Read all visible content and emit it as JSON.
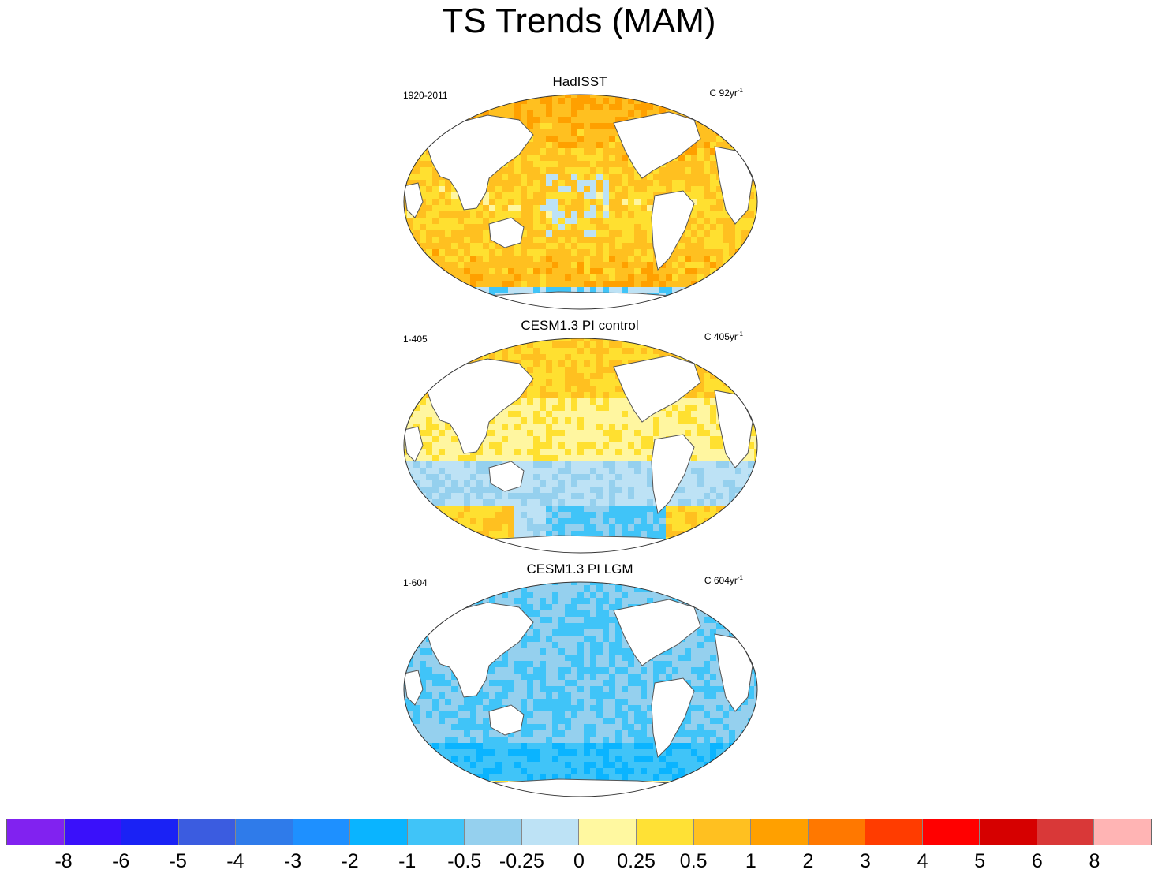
{
  "title": "TS Trends (MAM)",
  "panels": [
    {
      "title": "HadISST",
      "period": "1920-2011",
      "units_prefix": "C 92yr",
      "units_exp": "-1",
      "pattern": "warm"
    },
    {
      "title": "CESM1.3 PI control",
      "period": "1-405",
      "units_prefix": "C 405yr",
      "units_exp": "-1",
      "pattern": "mixed"
    },
    {
      "title": "CESM1.3 PI LGM",
      "period": "1-604",
      "units_prefix": "C 604yr",
      "units_exp": "-1",
      "pattern": "cool"
    }
  ],
  "colorbar": {
    "colors": [
      "#8122f0",
      "#3a10fa",
      "#1a22f5",
      "#3b5ce0",
      "#2f7bea",
      "#1e90ff",
      "#0ab4ff",
      "#40c4f8",
      "#95d0ee",
      "#bde2f5",
      "#fff8a0",
      "#ffe135",
      "#ffc020",
      "#ffa000",
      "#ff7800",
      "#ff3c00",
      "#ff0000",
      "#d60000",
      "#d93838",
      "#ffb4b4"
    ],
    "labels": [
      "-8",
      "-6",
      "-5",
      "-4",
      "-3",
      "-2",
      "-1",
      "-0.5",
      "-0.25",
      "0",
      "0.25",
      "0.5",
      "1",
      "2",
      "3",
      "4",
      "5",
      "6",
      "8"
    ]
  },
  "map_colors": {
    "ocean_light_yellow": "#fff6a0",
    "ocean_yellow": "#ffe030",
    "ocean_orange": "#ffc020",
    "ocean_dark_orange": "#ffa000",
    "ocean_light_blue": "#bde2f5",
    "ocean_mid_blue": "#95d0ee",
    "ocean_blue": "#40c4f8",
    "ocean_strong_blue": "#0ab4ff",
    "land": "#ffffff",
    "coast": "#555555"
  }
}
